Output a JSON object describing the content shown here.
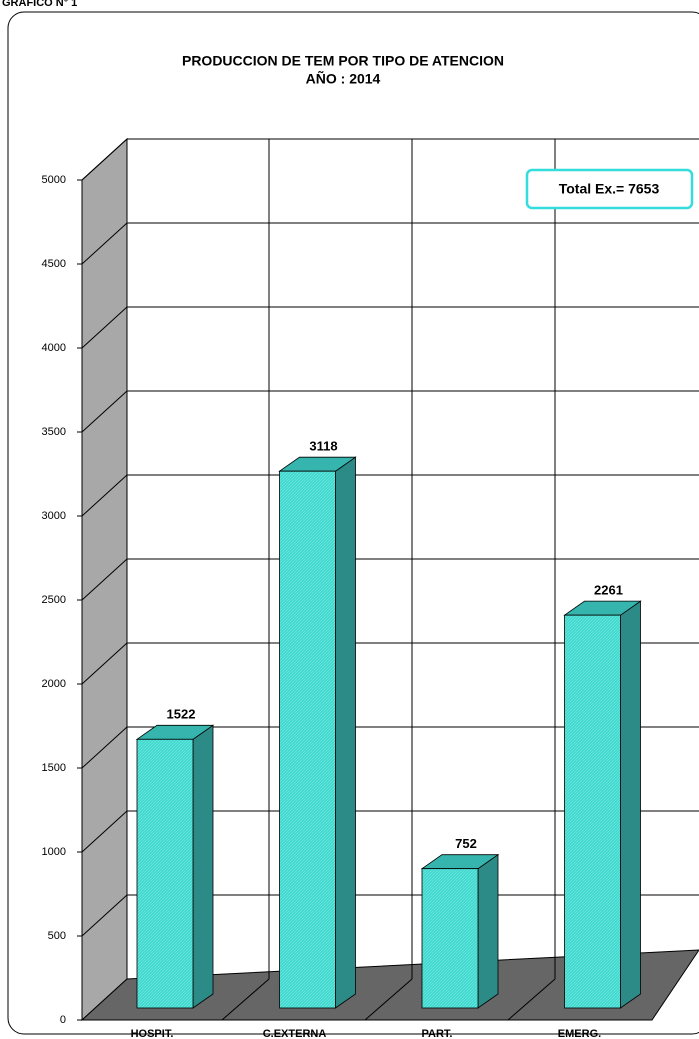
{
  "chart_data": {
    "type": "bar3d",
    "header": "GRAFICO N° 1",
    "title": "PRODUCCION DE TEM POR TIPO DE ATENCION",
    "subtitle": "AÑO : 2014",
    "categories": [
      "HOSPIT.",
      "C.EXTERNA",
      "PART.",
      "EMERG."
    ],
    "values": [
      1522,
      3118,
      752,
      2261
    ],
    "color": "#3fd9cf",
    "ylim": [
      0,
      5000
    ],
    "yticks": [
      0,
      500,
      1000,
      1500,
      2000,
      2500,
      3000,
      3500,
      4000,
      4500,
      5000
    ],
    "grid": true,
    "annotation": "Total Ex.= 7653"
  }
}
